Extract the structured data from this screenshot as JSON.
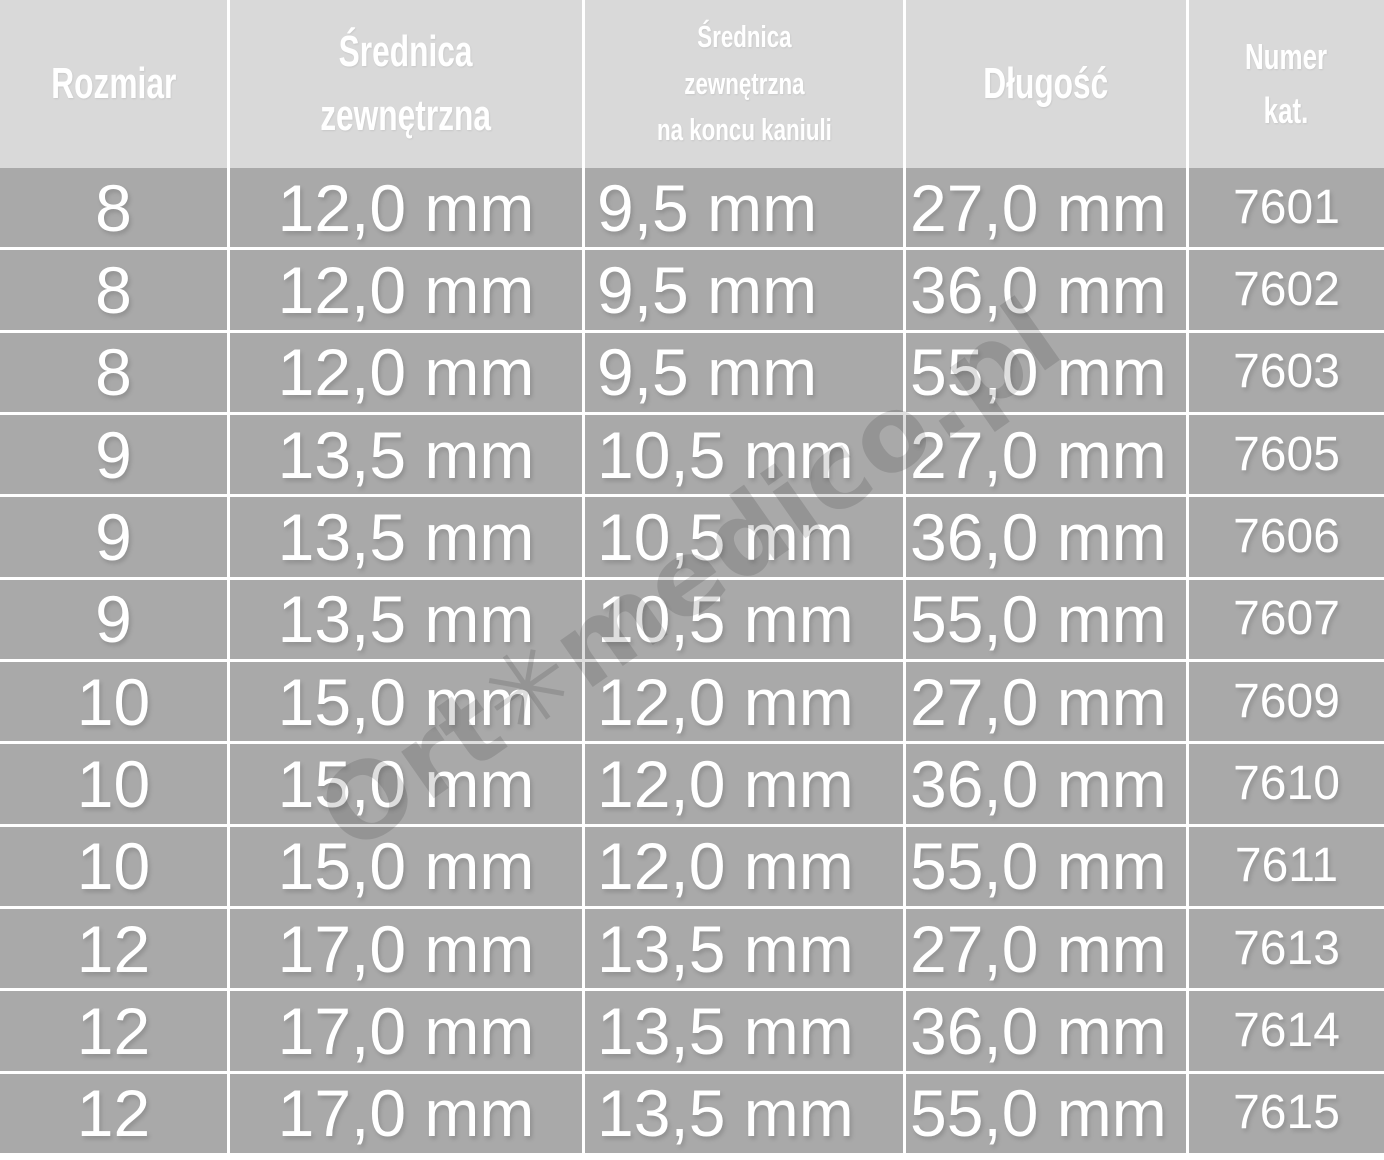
{
  "colors": {
    "header_bg": "#d9d9d9",
    "row_bg": "#a9a9a9",
    "grid_line": "#ffffff",
    "text": "#ffffff"
  },
  "watermark": {
    "text": "Ort✳medico.pl"
  },
  "table": {
    "columns": [
      {
        "label": "Rozmiar"
      },
      {
        "label": "Średnica\nzewnętrzna"
      },
      {
        "label": "Średnica\nzewnętrzna\nna koncu kaniuli"
      },
      {
        "label": "Długość"
      },
      {
        "label": "Numer\nkat."
      }
    ],
    "rows": [
      {
        "cells": [
          "8",
          "12,0 mm",
          "9,5 mm",
          "27,0 mm",
          "7601"
        ]
      },
      {
        "cells": [
          "8",
          "12,0 mm",
          "9,5 mm",
          "36,0 mm",
          "7602"
        ]
      },
      {
        "cells": [
          "8",
          "12,0 mm",
          "9,5 mm",
          "55,0 mm",
          "7603"
        ]
      },
      {
        "cells": [
          "9",
          "13,5 mm",
          "10,5 mm",
          "27,0 mm",
          "7605"
        ]
      },
      {
        "cells": [
          "9",
          "13,5 mm",
          "10,5 mm",
          "36,0 mm",
          "7606"
        ]
      },
      {
        "cells": [
          "9",
          "13,5 mm",
          "10,5 mm",
          "55,0 mm",
          "7607"
        ]
      },
      {
        "cells": [
          "10",
          "15,0 mm",
          "12,0 mm",
          "27,0 mm",
          "7609"
        ]
      },
      {
        "cells": [
          "10",
          "15,0 mm",
          "12,0 mm",
          "36,0 mm",
          "7610"
        ]
      },
      {
        "cells": [
          "10",
          "15,0 mm",
          "12,0 mm",
          "55,0 mm",
          "7611"
        ]
      },
      {
        "cells": [
          "12",
          "17,0 mm",
          "13,5 mm",
          "27,0 mm",
          "7613"
        ]
      },
      {
        "cells": [
          "12",
          "17,0 mm",
          "13,5 mm",
          "36,0 mm",
          "7614"
        ]
      },
      {
        "cells": [
          "12",
          "17,0 mm",
          "13,5 mm",
          "55,0 mm",
          "7615"
        ]
      }
    ]
  }
}
